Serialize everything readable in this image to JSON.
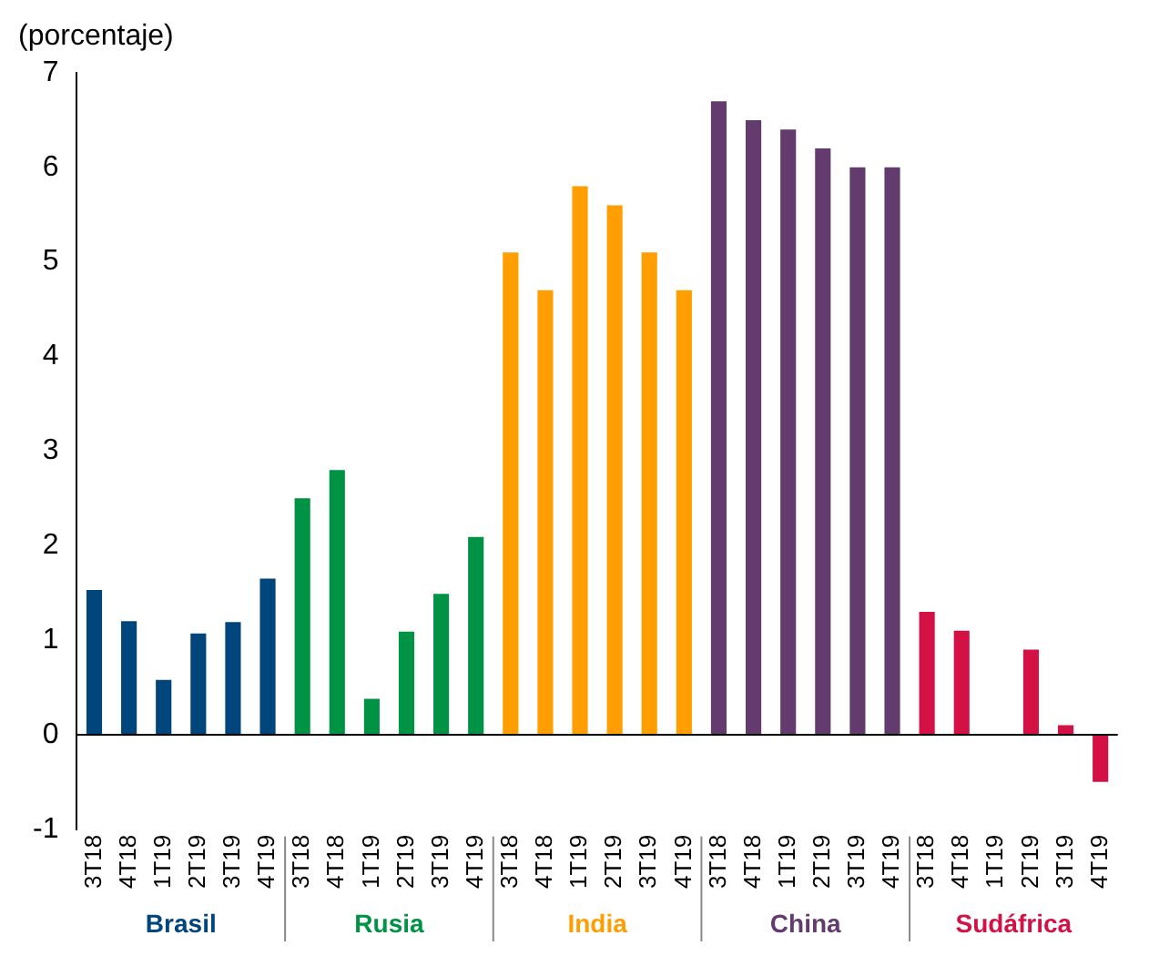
{
  "chart_data": {
    "type": "bar",
    "ylabel": "(porcentaje)",
    "categories": [
      "3T18",
      "4T18",
      "1T19",
      "2T19",
      "3T19",
      "4T19",
      "3T18",
      "4T18",
      "1T19",
      "2T19",
      "3T19",
      "4T19",
      "3T18",
      "4T18",
      "1T19",
      "2T19",
      "3T19",
      "4T19",
      "3T18",
      "4T18",
      "1T19",
      "2T19",
      "3T19",
      "4T19",
      "3T18",
      "4T18",
      "1T19",
      "2T19",
      "3T19",
      "4T19"
    ],
    "series": [
      {
        "name": "Brasil",
        "color": "#00457c",
        "values": [
          1.53,
          1.2,
          0.58,
          1.07,
          1.19,
          1.65,
          null,
          null,
          null,
          null,
          null,
          null,
          null,
          null,
          null,
          null,
          null,
          null,
          null,
          null,
          null,
          null,
          null,
          null,
          null,
          null,
          null,
          null,
          null,
          null
        ]
      },
      {
        "name": "Rusia",
        "color": "#009245",
        "values": [
          null,
          null,
          null,
          null,
          null,
          null,
          2.5,
          2.8,
          0.38,
          1.09,
          1.49,
          2.09,
          null,
          null,
          null,
          null,
          null,
          null,
          null,
          null,
          null,
          null,
          null,
          null,
          null,
          null,
          null,
          null,
          null,
          null
        ]
      },
      {
        "name": "India",
        "color": "#ff9e00",
        "values": [
          null,
          null,
          null,
          null,
          null,
          null,
          null,
          null,
          null,
          null,
          null,
          null,
          5.1,
          4.7,
          5.8,
          5.6,
          5.1,
          4.7,
          null,
          null,
          null,
          null,
          null,
          null,
          null,
          null,
          null,
          null,
          null,
          null
        ]
      },
      {
        "name": "China",
        "color": "#643b6e",
        "values": [
          null,
          null,
          null,
          null,
          null,
          null,
          null,
          null,
          null,
          null,
          null,
          null,
          null,
          null,
          null,
          null,
          null,
          null,
          6.7,
          6.5,
          6.4,
          6.2,
          6.0,
          6.0,
          null,
          null,
          null,
          null,
          null,
          null
        ]
      },
      {
        "name": "Sudáfrica",
        "color": "#d31145",
        "values": [
          null,
          null,
          null,
          null,
          null,
          null,
          null,
          null,
          null,
          null,
          null,
          null,
          null,
          null,
          null,
          null,
          null,
          null,
          null,
          null,
          null,
          null,
          null,
          null,
          1.3,
          1.1,
          0,
          0.9,
          0.1,
          -0.5
        ]
      }
    ],
    "ref_lines": [
      {
        "axis": "y",
        "value": 0,
        "color": "#000000"
      }
    ],
    "ylim": [
      -1,
      7
    ],
    "yticks": [
      -1,
      0,
      1,
      2,
      3,
      4,
      5,
      6,
      7
    ],
    "grid": false,
    "legend": false
  }
}
